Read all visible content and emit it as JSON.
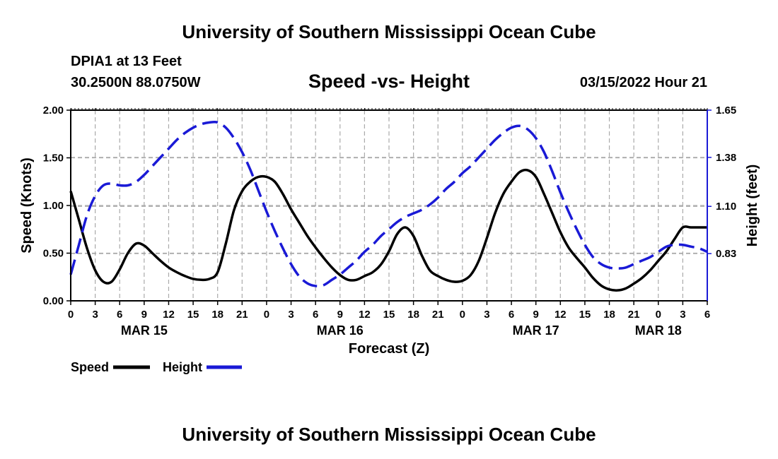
{
  "header": {
    "title": "University of Southern Mississippi Ocean Cube",
    "station": "DPIA1 at 13 Feet",
    "coordinates": "30.2500N  88.0750W",
    "chart_title": "Speed -vs- Height",
    "datetime": "03/15/2022 Hour 21"
  },
  "footer": {
    "title": "University of Southern Mississippi Ocean Cube"
  },
  "chart_data": {
    "type": "line",
    "title": "Speed -vs- Height",
    "xlabel": "Forecast (Z)",
    "ylabel": "Speed (Knots)",
    "y2label": "Height (feet)",
    "x_range_hours": [
      0,
      78
    ],
    "ylim": [
      0,
      2.0
    ],
    "y2lim": [
      0.56,
      1.65
    ],
    "x_tick_labels": [
      "0",
      "3",
      "6",
      "9",
      "12",
      "15",
      "18",
      "21",
      "0",
      "3",
      "6",
      "9",
      "12",
      "15",
      "18",
      "21",
      "0",
      "3",
      "6",
      "9",
      "12",
      "15",
      "18",
      "21",
      "0",
      "3",
      "6"
    ],
    "date_labels": [
      {
        "label": "MAR 15",
        "hour": 9
      },
      {
        "label": "MAR 16",
        "hour": 33
      },
      {
        "label": "MAR 17",
        "hour": 57
      },
      {
        "label": "MAR 18",
        "hour": 72
      }
    ],
    "y_ticks": [
      "0.00",
      "0.50",
      "1.00",
      "1.50",
      "2.00"
    ],
    "y_tick_values": [
      0,
      0.5,
      1.0,
      1.5,
      2.0
    ],
    "y2_ticks": [
      "0.83",
      "1.10",
      "1.38",
      "1.65"
    ],
    "y2_tick_values": [
      0.83,
      1.1,
      1.38,
      1.65
    ],
    "grid": true,
    "series": [
      {
        "name": "Speed",
        "axis": "left",
        "color": "#000000",
        "dash": "solid",
        "x": [
          0,
          1,
          2,
          3,
          4,
          5,
          6,
          7,
          8,
          9,
          10,
          11,
          12,
          13,
          14,
          15,
          16,
          17,
          18,
          19,
          20,
          21,
          22,
          23,
          24,
          25,
          26,
          27,
          28,
          29,
          30,
          31,
          32,
          33,
          34,
          35,
          36,
          37,
          38,
          39,
          40,
          41,
          42,
          43,
          44,
          45,
          46,
          47,
          48,
          49,
          50,
          51,
          52,
          53,
          54,
          55,
          56,
          57,
          58,
          59,
          60,
          61,
          62,
          63,
          64,
          65,
          66,
          67,
          68,
          69,
          70,
          71,
          72,
          73,
          74,
          75,
          76,
          77,
          78
        ],
        "values": [
          1.15,
          0.85,
          0.55,
          0.32,
          0.2,
          0.2,
          0.33,
          0.5,
          0.6,
          0.58,
          0.5,
          0.42,
          0.35,
          0.3,
          0.26,
          0.23,
          0.22,
          0.23,
          0.3,
          0.6,
          0.95,
          1.15,
          1.25,
          1.3,
          1.3,
          1.25,
          1.12,
          0.96,
          0.82,
          0.68,
          0.56,
          0.45,
          0.35,
          0.27,
          0.22,
          0.22,
          0.26,
          0.3,
          0.38,
          0.52,
          0.7,
          0.77,
          0.68,
          0.48,
          0.32,
          0.26,
          0.22,
          0.2,
          0.21,
          0.27,
          0.42,
          0.66,
          0.92,
          1.12,
          1.25,
          1.35,
          1.37,
          1.3,
          1.12,
          0.92,
          0.72,
          0.56,
          0.45,
          0.35,
          0.24,
          0.16,
          0.12,
          0.11,
          0.13,
          0.18,
          0.24,
          0.32,
          0.42,
          0.52,
          0.65,
          0.77,
          0.77,
          0.77,
          0.77
        ]
      },
      {
        "name": "Height",
        "axis": "right",
        "color": "#1a1ad6",
        "dash": "dashed",
        "x": [
          0,
          1,
          2,
          3,
          4,
          5,
          6,
          7,
          8,
          9,
          10,
          11,
          12,
          13,
          14,
          15,
          16,
          17,
          18,
          19,
          20,
          21,
          22,
          23,
          24,
          25,
          26,
          27,
          28,
          29,
          30,
          31,
          32,
          33,
          34,
          35,
          36,
          37,
          38,
          39,
          40,
          41,
          42,
          43,
          44,
          45,
          46,
          47,
          48,
          49,
          50,
          51,
          52,
          53,
          54,
          55,
          56,
          57,
          58,
          59,
          60,
          61,
          62,
          63,
          64,
          65,
          66,
          67,
          68,
          69,
          70,
          71,
          72,
          73,
          74,
          75,
          76,
          77,
          78
        ],
        "values": [
          0.71,
          0.88,
          1.05,
          1.16,
          1.22,
          1.23,
          1.22,
          1.22,
          1.24,
          1.28,
          1.33,
          1.38,
          1.43,
          1.48,
          1.52,
          1.55,
          1.57,
          1.58,
          1.58,
          1.55,
          1.49,
          1.41,
          1.31,
          1.19,
          1.07,
          0.96,
          0.86,
          0.77,
          0.7,
          0.66,
          0.645,
          0.65,
          0.68,
          0.71,
          0.75,
          0.79,
          0.84,
          0.88,
          0.93,
          0.97,
          1.01,
          1.04,
          1.06,
          1.08,
          1.11,
          1.15,
          1.2,
          1.24,
          1.29,
          1.33,
          1.38,
          1.43,
          1.48,
          1.52,
          1.55,
          1.56,
          1.54,
          1.49,
          1.41,
          1.3,
          1.18,
          1.07,
          0.97,
          0.88,
          0.81,
          0.77,
          0.75,
          0.745,
          0.75,
          0.77,
          0.79,
          0.81,
          0.84,
          0.87,
          0.88,
          0.88,
          0.87,
          0.86,
          0.84
        ]
      }
    ]
  },
  "legend": {
    "items": [
      {
        "label": "Speed",
        "color": "#000000",
        "dash": "solid"
      },
      {
        "label": "Height",
        "color": "#1a1ad6",
        "dash": "dashed"
      }
    ]
  }
}
